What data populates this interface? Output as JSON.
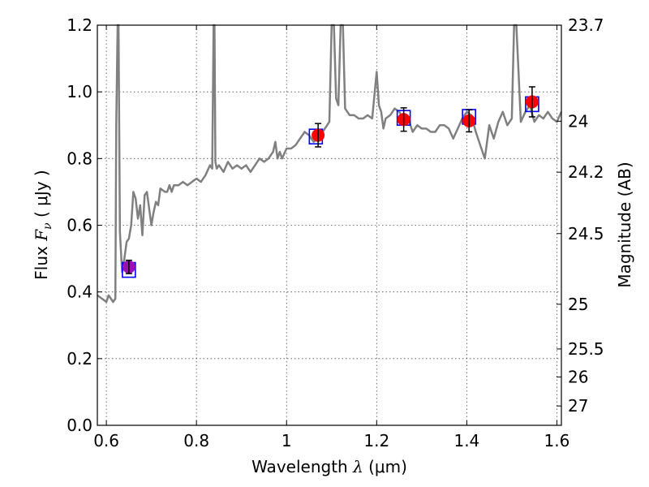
{
  "chart_data": {
    "type": "scatter",
    "grid": true,
    "x_axis": {
      "label_prefix": "Wavelength  ",
      "label_symbol": "λ",
      "label_suffix": " (μm)",
      "lim": [
        0.58,
        1.61
      ],
      "ticks": [
        0.6,
        0.8,
        1.0,
        1.2,
        1.4,
        1.6
      ],
      "tick_labels": [
        "0.6",
        "0.8",
        "1",
        "1.2",
        "1.4",
        "1.6"
      ]
    },
    "y_axis": {
      "label_prefix": "Flux  ",
      "label_symbol": "F",
      "label_subscript": "ν",
      "label_suffix": "  ( μJy )",
      "lim": [
        0.0,
        1.2
      ],
      "ticks": [
        0.0,
        0.2,
        0.4,
        0.6,
        0.8,
        1.0,
        1.2
      ],
      "tick_labels": [
        "0.0",
        "0.2",
        "0.4",
        "0.6",
        "0.8",
        "1.0",
        "1.2"
      ]
    },
    "y2_axis": {
      "label": "Magnitude (AB)",
      "ticks": [
        {
          "label": "23.7",
          "flux": 1.2
        },
        {
          "label": "24",
          "flux": 0.912
        },
        {
          "label": "24.2",
          "flux": 0.759
        },
        {
          "label": "24.5",
          "flux": 0.575
        },
        {
          "label": "25",
          "flux": 0.363
        },
        {
          "label": "25.5",
          "flux": 0.229
        },
        {
          "label": "26",
          "flux": 0.145
        },
        {
          "label": "27",
          "flux": 0.058
        }
      ]
    },
    "model_spectrum": {
      "color": "#808080",
      "x": [
        0.58,
        0.59,
        0.6,
        0.605,
        0.61,
        0.615,
        0.62,
        0.622,
        0.625,
        0.627,
        0.63,
        0.635,
        0.64,
        0.645,
        0.65,
        0.655,
        0.66,
        0.665,
        0.67,
        0.675,
        0.68,
        0.685,
        0.69,
        0.7,
        0.705,
        0.71,
        0.715,
        0.72,
        0.73,
        0.735,
        0.74,
        0.745,
        0.75,
        0.76,
        0.77,
        0.78,
        0.79,
        0.8,
        0.81,
        0.82,
        0.83,
        0.835,
        0.838,
        0.84,
        0.842,
        0.845,
        0.85,
        0.86,
        0.87,
        0.88,
        0.89,
        0.9,
        0.91,
        0.92,
        0.93,
        0.94,
        0.95,
        0.96,
        0.97,
        0.975,
        0.98,
        0.985,
        0.99,
        1.0,
        1.01,
        1.02,
        1.03,
        1.04,
        1.05,
        1.06,
        1.07,
        1.08,
        1.09,
        1.095,
        1.1,
        1.105,
        1.11,
        1.115,
        1.12,
        1.125,
        1.13,
        1.14,
        1.15,
        1.16,
        1.17,
        1.18,
        1.19,
        1.2,
        1.205,
        1.21,
        1.215,
        1.22,
        1.23,
        1.24,
        1.25,
        1.26,
        1.27,
        1.28,
        1.29,
        1.3,
        1.31,
        1.32,
        1.33,
        1.34,
        1.35,
        1.36,
        1.37,
        1.38,
        1.39,
        1.4,
        1.41,
        1.42,
        1.43,
        1.44,
        1.45,
        1.46,
        1.47,
        1.48,
        1.49,
        1.5,
        1.505,
        1.51,
        1.52,
        1.53,
        1.54,
        1.55,
        1.56,
        1.57,
        1.58,
        1.59,
        1.6,
        1.61
      ],
      "y": [
        0.39,
        0.38,
        0.37,
        0.39,
        0.38,
        0.37,
        0.38,
        0.9,
        1.2,
        1.2,
        0.58,
        0.46,
        0.5,
        0.55,
        0.56,
        0.6,
        0.7,
        0.68,
        0.62,
        0.66,
        0.57,
        0.69,
        0.7,
        0.6,
        0.64,
        0.67,
        0.66,
        0.71,
        0.7,
        0.7,
        0.72,
        0.7,
        0.72,
        0.72,
        0.73,
        0.72,
        0.73,
        0.74,
        0.73,
        0.75,
        0.78,
        0.77,
        1.2,
        1.2,
        0.79,
        0.77,
        0.78,
        0.76,
        0.79,
        0.77,
        0.78,
        0.77,
        0.78,
        0.76,
        0.78,
        0.8,
        0.79,
        0.8,
        0.82,
        0.85,
        0.8,
        0.82,
        0.8,
        0.83,
        0.83,
        0.84,
        0.86,
        0.88,
        0.87,
        0.85,
        0.86,
        0.88,
        0.9,
        0.91,
        1.2,
        1.2,
        0.98,
        0.96,
        1.2,
        1.2,
        0.95,
        0.93,
        0.93,
        0.92,
        0.92,
        0.93,
        0.92,
        1.06,
        0.96,
        0.94,
        0.89,
        0.92,
        0.93,
        0.95,
        0.94,
        0.92,
        0.92,
        0.88,
        0.9,
        0.89,
        0.89,
        0.88,
        0.88,
        0.9,
        0.9,
        0.89,
        0.86,
        0.89,
        0.92,
        0.94,
        0.93,
        0.88,
        0.84,
        0.8,
        0.9,
        0.86,
        0.91,
        0.94,
        0.9,
        0.92,
        1.2,
        1.2,
        0.91,
        0.94,
        0.96,
        0.91,
        0.93,
        0.92,
        0.94,
        0.92,
        0.91,
        0.94
      ]
    },
    "model_band_flux": {
      "color": "#0000ff",
      "marker": "square",
      "x": [
        0.65,
        1.065,
        1.26,
        1.405,
        1.545
      ],
      "y": [
        0.466,
        0.866,
        0.922,
        0.925,
        0.963
      ]
    },
    "observed_flux": {
      "color": "#ff0000",
      "marker": "circle",
      "x": [
        0.65,
        1.07,
        1.26,
        1.405,
        1.545
      ],
      "y": [
        0.475,
        0.87,
        0.917,
        0.913,
        0.97
      ],
      "err": [
        0.02,
        0.035,
        0.035,
        0.033,
        0.045
      ]
    }
  }
}
